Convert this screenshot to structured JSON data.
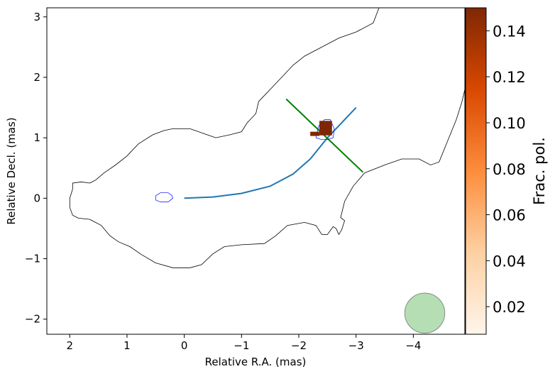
{
  "chart_data": {
    "type": "scatter",
    "title": "",
    "xlabel": "Relative R.A. (mas)",
    "ylabel": "Relative Decl. (mas)",
    "xlim": [
      2.4,
      -4.9
    ],
    "ylim": [
      -2.25,
      3.15
    ],
    "x_ticks": [
      2,
      1,
      0,
      -1,
      -2,
      -3,
      -4
    ],
    "x_tick_labels": [
      "2",
      "1",
      "0",
      "−1",
      "−2",
      "−3",
      "−4"
    ],
    "y_ticks": [
      -2,
      -1,
      0,
      1,
      2,
      3
    ],
    "y_tick_labels": [
      "−2",
      "−1",
      "0",
      "1",
      "2",
      "3"
    ],
    "grid": false,
    "colorbar": {
      "label": "Frac. pol.",
      "range": [
        0.008,
        0.15
      ],
      "ticks": [
        0.02,
        0.04,
        0.06,
        0.08,
        0.1,
        0.12,
        0.14
      ],
      "tick_labels": [
        "0.02",
        "0.04",
        "0.06",
        "0.08",
        "0.10",
        "0.12",
        "0.14"
      ],
      "colormap": [
        "#fff5eb",
        "#fdd0a2",
        "#fd8d3c",
        "#d94801",
        "#7f2704"
      ]
    },
    "series": [
      {
        "kind": "contour",
        "color": "#000000",
        "points": [
          [
            1.95,
            0.15
          ],
          [
            2.0,
            0.0
          ],
          [
            2.0,
            -0.15
          ],
          [
            1.95,
            -0.28
          ],
          [
            1.85,
            -0.33
          ],
          [
            1.65,
            -0.35
          ],
          [
            1.45,
            -0.45
          ],
          [
            1.3,
            -0.62
          ],
          [
            1.15,
            -0.72
          ],
          [
            0.95,
            -0.8
          ],
          [
            0.75,
            -0.93
          ],
          [
            0.5,
            -1.07
          ],
          [
            0.2,
            -1.15
          ],
          [
            -0.1,
            -1.15
          ],
          [
            -0.3,
            -1.1
          ],
          [
            -0.5,
            -0.92
          ],
          [
            -0.7,
            -0.8
          ],
          [
            -1.0,
            -0.77
          ],
          [
            -1.4,
            -0.75
          ],
          [
            -1.6,
            -0.62
          ],
          [
            -1.8,
            -0.45
          ],
          [
            -2.1,
            -0.4
          ],
          [
            -2.3,
            -0.45
          ],
          [
            -2.4,
            -0.6
          ],
          [
            -2.5,
            -0.6
          ],
          [
            -2.6,
            -0.47
          ],
          [
            -2.65,
            -0.5
          ],
          [
            -2.7,
            -0.6
          ],
          [
            -2.75,
            -0.52
          ],
          [
            -2.8,
            -0.37
          ],
          [
            -2.73,
            -0.32
          ],
          [
            -2.8,
            -0.05
          ],
          [
            -2.95,
            0.2
          ],
          [
            -3.15,
            0.42
          ],
          [
            -3.5,
            0.55
          ],
          [
            -3.8,
            0.65
          ],
          [
            -4.1,
            0.65
          ],
          [
            -4.3,
            0.55
          ],
          [
            -4.45,
            0.6
          ],
          [
            -4.6,
            0.95
          ],
          [
            -4.75,
            1.3
          ],
          [
            -4.85,
            1.6
          ],
          [
            -4.9,
            1.8
          ],
          [
            -4.9,
            3.15
          ]
        ],
        "points_upper": [
          [
            -3.4,
            3.15
          ],
          [
            -3.3,
            2.9
          ],
          [
            -3.0,
            2.75
          ],
          [
            -2.7,
            2.65
          ],
          [
            -2.4,
            2.5
          ],
          [
            -2.1,
            2.35
          ],
          [
            -1.9,
            2.2
          ],
          [
            -1.7,
            2.0
          ],
          [
            -1.45,
            1.75
          ],
          [
            -1.3,
            1.6
          ],
          [
            -1.25,
            1.4
          ],
          [
            -1.1,
            1.25
          ],
          [
            -1.0,
            1.1
          ],
          [
            -0.8,
            1.05
          ],
          [
            -0.55,
            1.0
          ],
          [
            -0.4,
            1.05
          ],
          [
            -0.1,
            1.15
          ],
          [
            0.2,
            1.15
          ],
          [
            0.35,
            1.12
          ],
          [
            0.55,
            1.05
          ],
          [
            0.8,
            0.9
          ],
          [
            1.0,
            0.7
          ],
          [
            1.2,
            0.55
          ],
          [
            1.4,
            0.42
          ],
          [
            1.55,
            0.3
          ],
          [
            1.65,
            0.25
          ],
          [
            1.8,
            0.27
          ],
          [
            1.95,
            0.25
          ],
          [
            1.95,
            0.15
          ]
        ]
      },
      {
        "kind": "curve",
        "color": "#1f77b4",
        "points": [
          [
            0.0,
            0.0
          ],
          [
            -0.5,
            0.02
          ],
          [
            -1.0,
            0.08
          ],
          [
            -1.5,
            0.2
          ],
          [
            -1.9,
            0.4
          ],
          [
            -2.2,
            0.65
          ],
          [
            -2.5,
            1.0
          ],
          [
            -2.75,
            1.25
          ],
          [
            -3.0,
            1.5
          ]
        ]
      },
      {
        "kind": "line",
        "color": "#008000",
        "points": [
          [
            -1.78,
            1.64
          ],
          [
            -3.12,
            0.43
          ]
        ]
      },
      {
        "kind": "contour",
        "color": "#0000ff",
        "points": [
          [
            0.2,
            0.0
          ],
          [
            0.28,
            -0.06
          ],
          [
            0.42,
            -0.06
          ],
          [
            0.5,
            -0.03
          ],
          [
            0.5,
            0.04
          ],
          [
            0.42,
            0.09
          ],
          [
            0.28,
            0.09
          ],
          [
            0.22,
            0.05
          ]
        ]
      },
      {
        "kind": "contour",
        "color": "#0000ff",
        "points": [
          [
            -2.3,
            1.0
          ],
          [
            -2.35,
            1.2
          ],
          [
            -2.45,
            1.3
          ],
          [
            -2.55,
            1.3
          ],
          [
            -2.62,
            1.15
          ],
          [
            -2.6,
            1.0
          ],
          [
            -2.5,
            0.97
          ],
          [
            -2.4,
            0.97
          ]
        ]
      },
      {
        "kind": "pixels",
        "value": 0.15,
        "color": "#7f2704",
        "rects": [
          [
            -2.36,
            -2.58,
            1.04,
            1.28
          ],
          [
            -2.2,
            -2.36,
            1.03,
            1.1
          ]
        ]
      },
      {
        "kind": "beam",
        "color": "#2ca02c",
        "center": [
          -4.2,
          -1.9
        ],
        "radius": 0.35
      }
    ]
  }
}
